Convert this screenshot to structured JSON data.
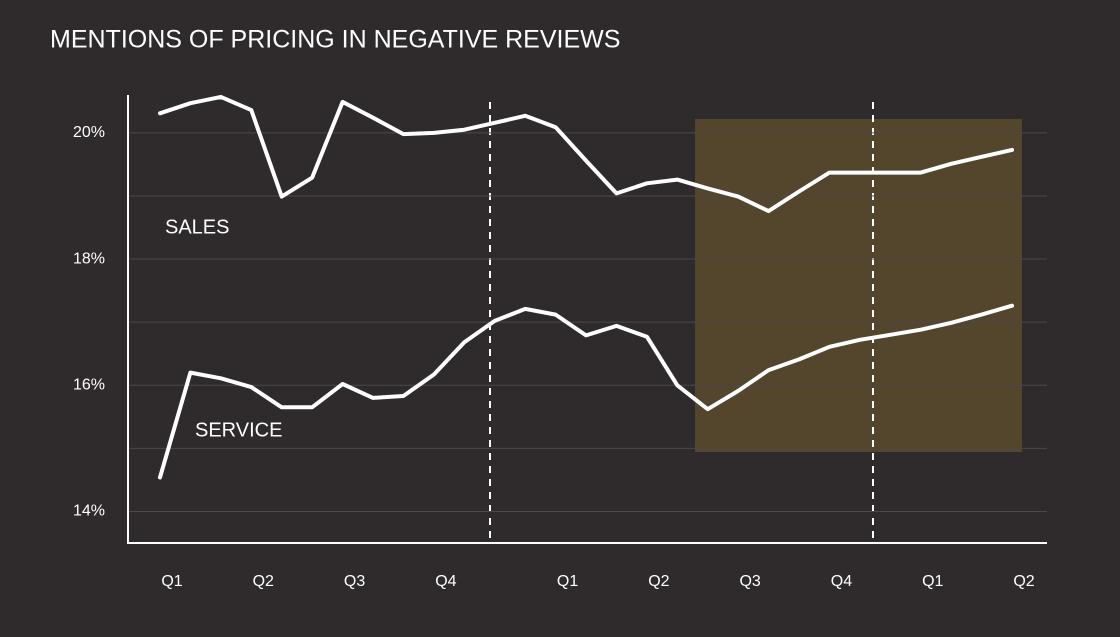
{
  "chart_data": {
    "type": "line",
    "title": "MENTIONS OF PRICING IN NEGATIVE REVIEWS",
    "categories": [
      "Q1",
      null,
      null,
      "Q2",
      null,
      null,
      "Q3",
      null,
      null,
      "Q4",
      null,
      null,
      null,
      "Q1",
      null,
      null,
      "Q2",
      null,
      null,
      "Q3",
      null,
      null,
      "Q4",
      null,
      null,
      "Q1",
      null,
      null,
      "Q2"
    ],
    "series": [
      {
        "name": "SALES",
        "color": "#ffffff",
        "values": [
          20.31,
          20.47,
          20.57,
          20.36,
          18.99,
          19.29,
          20.49,
          20.24,
          19.98,
          20.0,
          20.05,
          20.16,
          20.27,
          20.09,
          19.56,
          19.04,
          19.2,
          19.26,
          19.12,
          18.99,
          18.76,
          19.07,
          19.37,
          19.37,
          19.37,
          19.37,
          19.51,
          19.62,
          19.73
        ]
      },
      {
        "name": "SERVICE",
        "color": "#ffffff",
        "values": [
          14.54,
          16.2,
          16.11,
          15.97,
          15.65,
          15.65,
          16.02,
          15.8,
          15.83,
          16.17,
          16.68,
          17.02,
          17.21,
          17.12,
          16.79,
          16.94,
          16.77,
          16.0,
          15.62,
          15.91,
          16.24,
          16.41,
          16.61,
          16.72,
          16.8,
          16.88,
          16.99,
          17.12,
          17.26
        ]
      }
    ],
    "ylim": [
      13.5,
      20.6
    ],
    "yticks": [
      {
        "value": 14,
        "label": "14%"
      },
      {
        "value": 16,
        "label": "16%"
      },
      {
        "value": 18,
        "label": "18%"
      },
      {
        "value": 20,
        "label": "20%"
      }
    ],
    "minor_yticks": [
      15,
      17,
      19
    ],
    "grid": true
  }
}
